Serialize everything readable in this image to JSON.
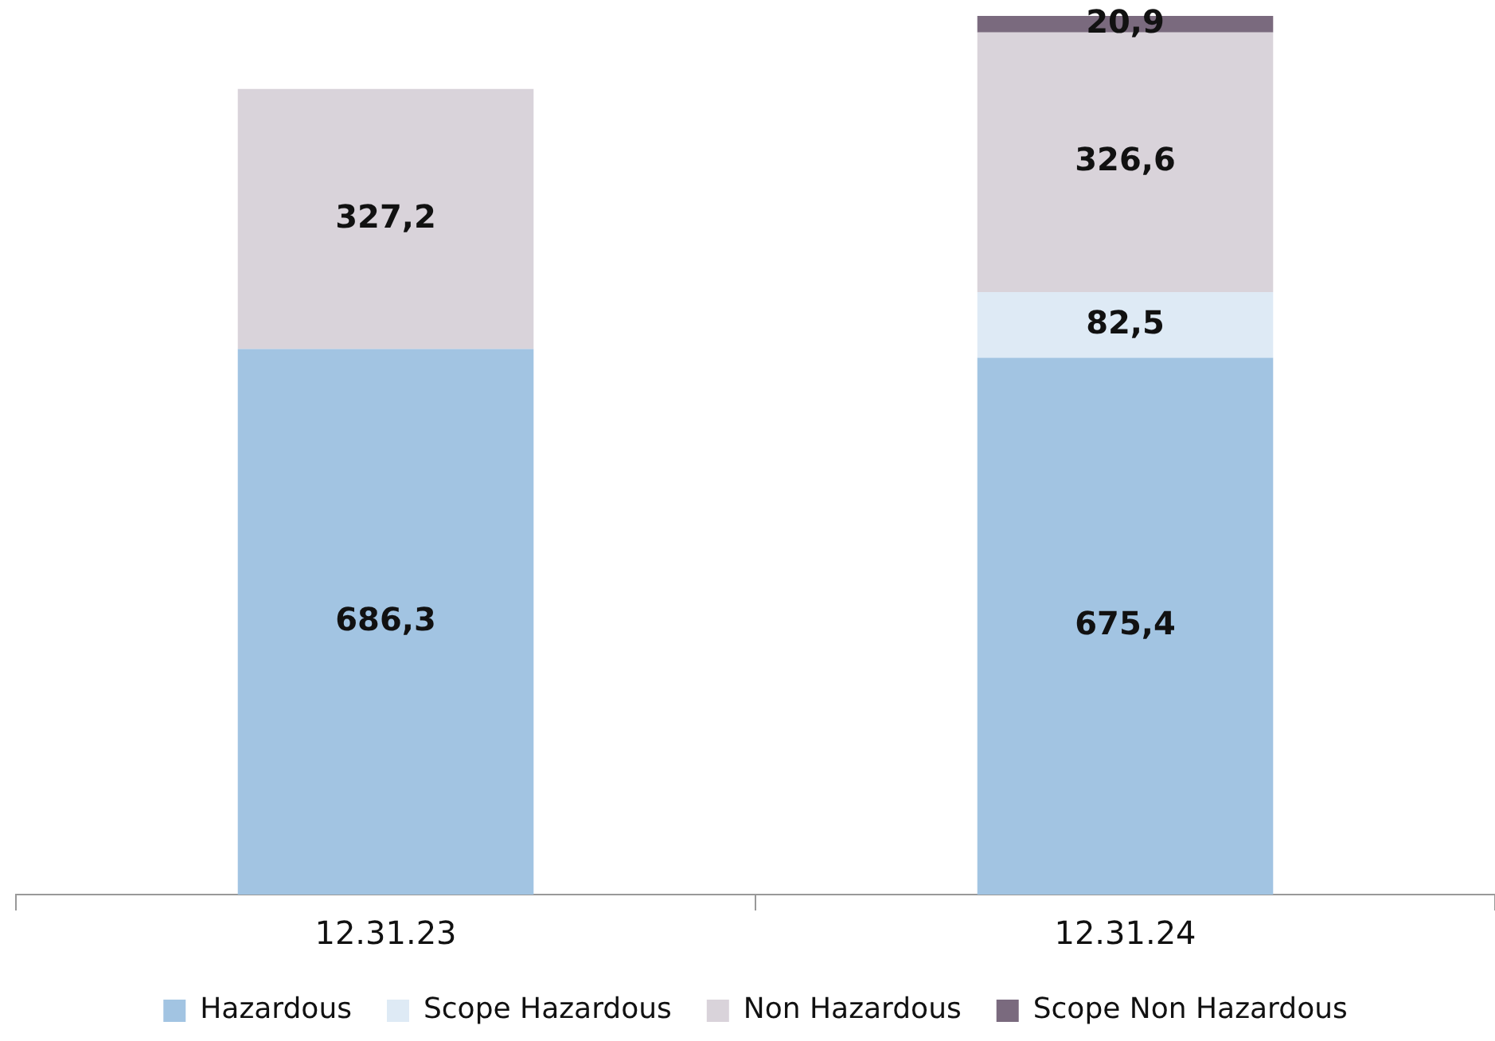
{
  "chart_data": {
    "type": "bar",
    "stacked": true,
    "categories": [
      "12.31.23",
      "12.31.24"
    ],
    "legend": "bottom",
    "grid": false,
    "series": [
      {
        "name": "Hazardous",
        "color": "#a2c4e2",
        "values": [
          686.3,
          675.4
        ],
        "value_labels": [
          "686,3",
          "675,4"
        ]
      },
      {
        "name": "Scope Hazardous",
        "color": "#deeaf5",
        "values": [
          null,
          82.5
        ],
        "value_labels": [
          null,
          "82,5"
        ]
      },
      {
        "name": "Non Hazardous",
        "color": "#d9d3da",
        "values": [
          327.2,
          326.6
        ],
        "value_labels": [
          "327,2",
          "326,6"
        ]
      },
      {
        "name": "Scope Non Hazardous",
        "color": "#7a6a7e",
        "values": [
          null,
          20.9
        ],
        "value_labels": [
          null,
          "20,9"
        ]
      }
    ]
  }
}
